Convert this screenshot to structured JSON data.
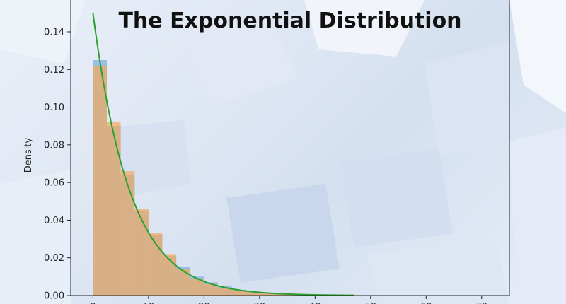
{
  "chart_data": {
    "type": "bar",
    "title": "The Exponential Distribution",
    "xlabel": "",
    "ylabel": "Density",
    "xlim": [
      -4,
      75
    ],
    "ylim": [
      0,
      0.15
    ],
    "yticks": [
      "0.00",
      "0.02",
      "0.04",
      "0.06",
      "0.08",
      "0.10",
      "0.12",
      "0.14"
    ],
    "ytick_values": [
      0,
      0.02,
      0.04,
      0.06,
      0.08,
      0.1,
      0.12,
      0.14
    ],
    "xticks": [
      "0",
      "10",
      "20",
      "30",
      "40",
      "50",
      "60",
      "70"
    ],
    "xtick_values": [
      0,
      10,
      20,
      30,
      40,
      50,
      60,
      70
    ],
    "grid": false,
    "bin_width": 2.5,
    "series": [
      {
        "color": "#7fb1dc",
        "bin_starts": [
          0,
          2.5,
          5,
          7.5,
          10,
          12.5,
          15,
          17.5,
          20,
          22.5,
          25,
          27.5,
          30,
          32.5,
          35
        ],
        "values": [
          0.125,
          0.09,
          0.064,
          0.045,
          0.032,
          0.021,
          0.015,
          0.01,
          0.007,
          0.005,
          0.003,
          0.002,
          0.0015,
          0.001,
          0.0006
        ]
      },
      {
        "color": "#f5a95e",
        "bin_starts": [
          0,
          2.5,
          5,
          7.5,
          10,
          12.5,
          15,
          17.5,
          20,
          22.5,
          25,
          27.5,
          30,
          32.5,
          35
        ],
        "values": [
          0.122,
          0.092,
          0.066,
          0.046,
          0.033,
          0.022,
          0.014,
          0.009,
          0.006,
          0.004,
          0.003,
          0.002,
          0.0012,
          0.0008,
          0.0005
        ]
      }
    ],
    "curve": {
      "color": "#2ca02c",
      "rate": 0.15,
      "x_range": [
        0,
        47
      ]
    }
  }
}
